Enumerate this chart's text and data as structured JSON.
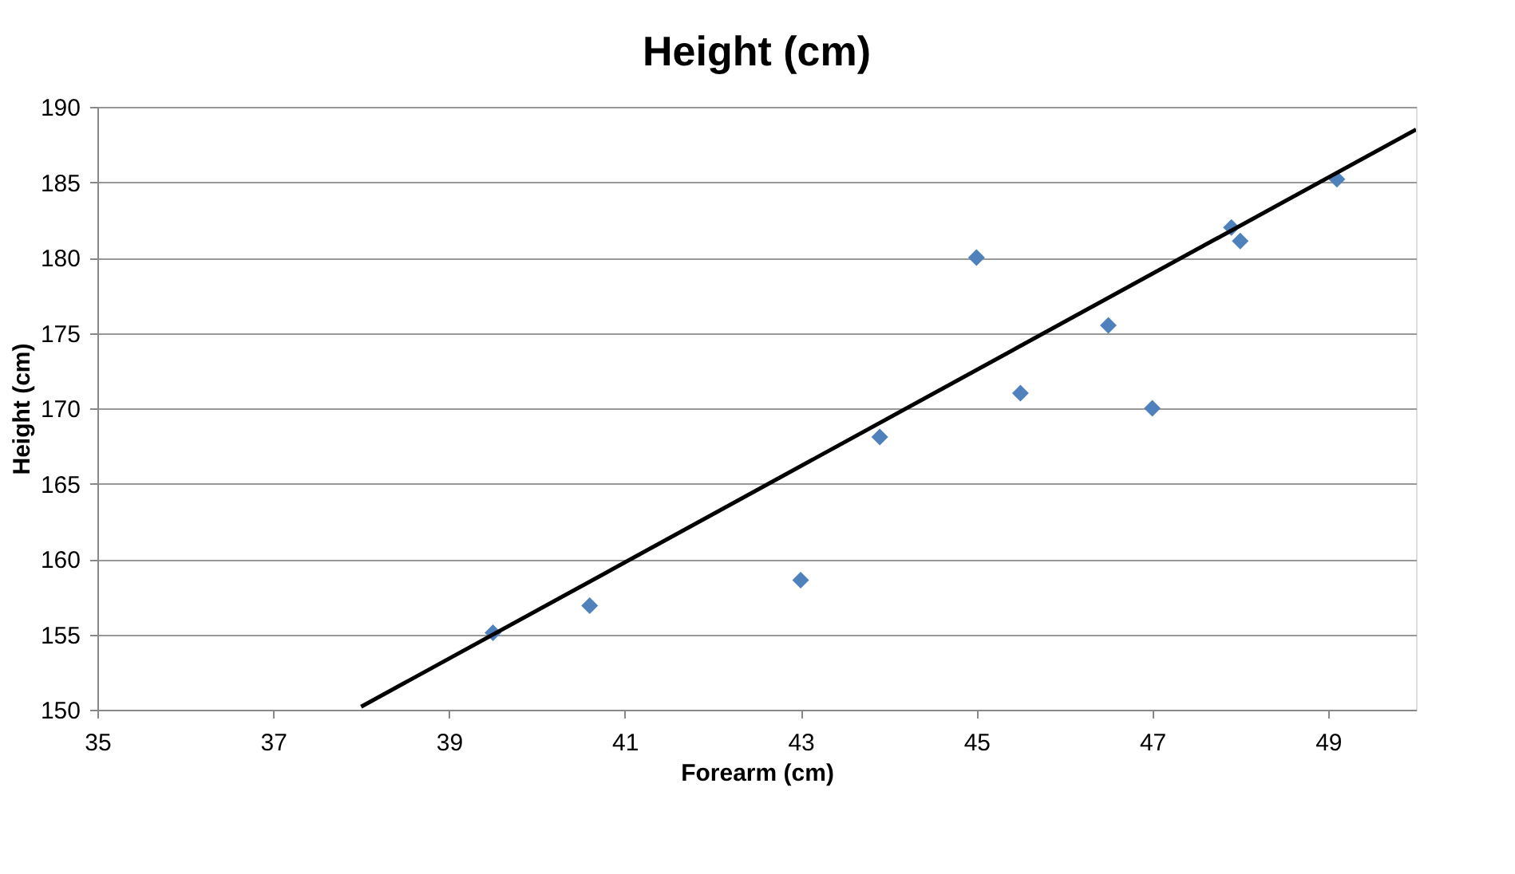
{
  "chart_data": {
    "type": "scatter",
    "title": "Height (cm)",
    "xlabel": "Forearm (cm)",
    "ylabel": "Height (cm)",
    "x": [
      39.5,
      40.6,
      43.0,
      43.9,
      45.0,
      45.5,
      46.5,
      47.0,
      47.9,
      48.0,
      49.1
    ],
    "series": [
      {
        "color": "#4f81bd",
        "marker": "diamond",
        "values": [
          155.1,
          156.9,
          158.6,
          168.1,
          180.0,
          171.0,
          175.5,
          170.0,
          182.0,
          181.1,
          185.2
        ]
      },
      {
        "type": "line",
        "color": "#000000",
        "line_style": "solid",
        "marker": "none",
        "x": [
          38.0,
          50.0
        ],
        "values": [
          150.2,
          188.5
        ]
      }
    ],
    "xlim": [
      35,
      50
    ],
    "xticks": [
      35,
      37,
      39,
      41,
      43,
      45,
      47,
      49
    ],
    "ylim": [
      150,
      190
    ],
    "yticks": [
      150,
      155,
      160,
      165,
      170,
      175,
      180,
      185,
      190
    ],
    "grid": "y"
  }
}
